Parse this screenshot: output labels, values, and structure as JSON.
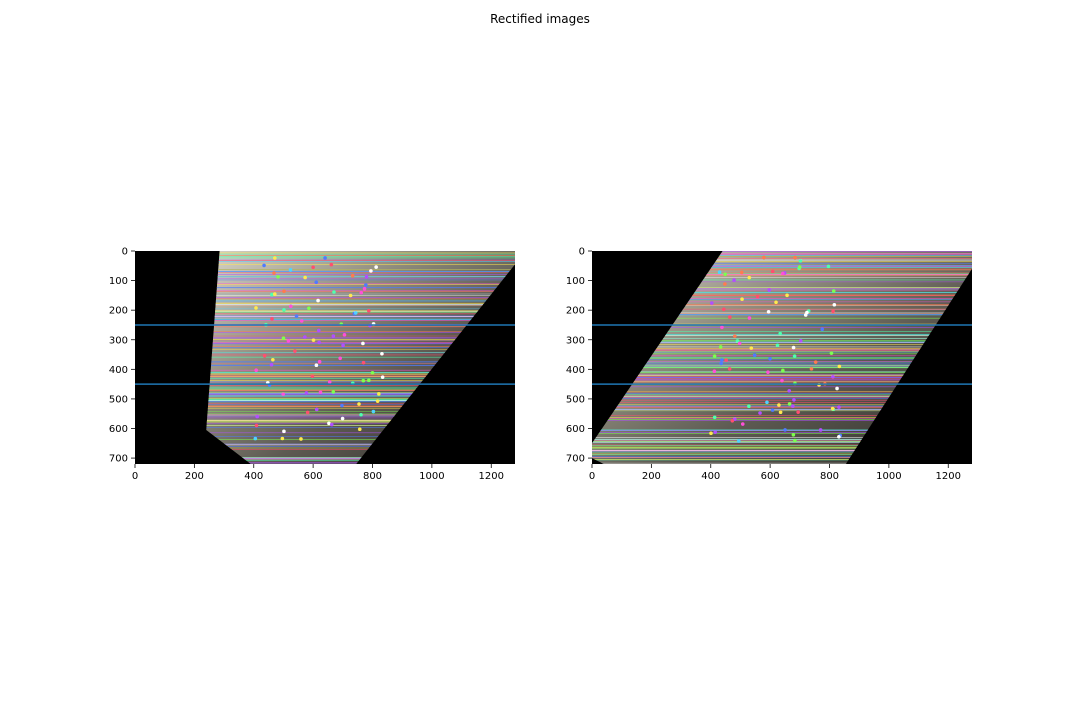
{
  "title": "Rectified images",
  "chart_data": [
    {
      "type": "image",
      "panel": "left",
      "title": "",
      "xlabel": "",
      "ylabel": "",
      "xlim": [
        0,
        1280
      ],
      "ylim": [
        720,
        0
      ],
      "xticks": [
        0,
        200,
        400,
        600,
        800,
        1000,
        1200
      ],
      "yticks": [
        0,
        100,
        200,
        300,
        400,
        500,
        600,
        700
      ],
      "image_region": [
        [
          285,
          0
        ],
        [
          1280,
          0
        ],
        [
          1280,
          45
        ],
        [
          745,
          720
        ],
        [
          390,
          720
        ],
        [
          240,
          605
        ]
      ],
      "horizontal_lines": [
        250,
        450
      ],
      "line_color": "#1f77b4"
    },
    {
      "type": "image",
      "panel": "right",
      "title": "",
      "xlabel": "",
      "ylabel": "",
      "xlim": [
        0,
        1280
      ],
      "ylim": [
        720,
        0
      ],
      "xticks": [
        0,
        200,
        400,
        600,
        800,
        1000,
        1200
      ],
      "yticks": [
        0,
        100,
        200,
        300,
        400,
        500,
        600,
        700
      ],
      "image_region": [
        [
          440,
          0
        ],
        [
          1280,
          0
        ],
        [
          1280,
          60
        ],
        [
          855,
          720
        ],
        [
          40,
          720
        ],
        [
          0,
          700
        ],
        [
          0,
          650
        ]
      ],
      "horizontal_lines": [
        250,
        450
      ],
      "line_color": "#1f77b4"
    }
  ]
}
